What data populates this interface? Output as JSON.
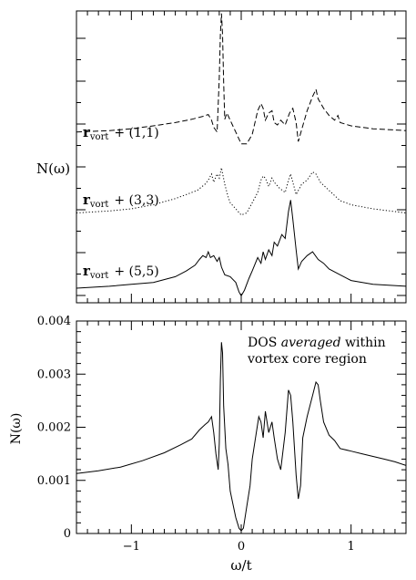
{
  "chart_data": [
    {
      "type": "line",
      "panel": "top",
      "ylabel": "N(ω)",
      "xlim": [
        -1.5,
        1.5
      ],
      "y_tick_labels": "none",
      "grid": false,
      "series": [
        {
          "name": "r_vort + (1,1)",
          "label_main": "r",
          "label_sub": "vort",
          "label_rest": "+ (1,1)",
          "style": "dashed",
          "x": [
            -1.5,
            -1.2,
            -1.0,
            -0.8,
            -0.6,
            -0.45,
            -0.35,
            -0.3,
            -0.27,
            -0.25,
            -0.22,
            -0.2,
            -0.19,
            -0.18,
            -0.17,
            -0.16,
            -0.15,
            -0.13,
            -0.1,
            -0.05,
            0.0,
            0.05,
            0.1,
            0.15,
            0.18,
            0.2,
            0.22,
            0.25,
            0.28,
            0.3,
            0.33,
            0.36,
            0.4,
            0.44,
            0.47,
            0.5,
            0.52,
            0.55,
            0.6,
            0.65,
            0.68,
            0.7,
            0.75,
            0.8,
            0.85,
            0.88,
            0.9,
            1.0,
            1.2,
            1.5
          ],
          "y": [
            0.35,
            0.38,
            0.42,
            0.48,
            0.55,
            0.62,
            0.68,
            0.72,
            0.6,
            0.45,
            0.35,
            1.5,
            2.4,
            2.85,
            2.4,
            1.4,
            0.62,
            0.75,
            0.6,
            0.35,
            0.1,
            0.1,
            0.3,
            0.8,
            0.95,
            0.85,
            0.6,
            0.75,
            0.8,
            0.55,
            0.5,
            0.6,
            0.5,
            0.75,
            0.85,
            0.55,
            0.15,
            0.4,
            0.8,
            1.1,
            1.25,
            1.05,
            0.85,
            0.7,
            0.6,
            0.7,
            0.55,
            0.48,
            0.42,
            0.38
          ]
        },
        {
          "name": "r_vort + (3,3)",
          "label_main": "r",
          "label_sub": "vort",
          "label_rest": "+ (3,3)",
          "style": "dotted",
          "x": [
            -1.5,
            -1.2,
            -1.0,
            -0.8,
            -0.6,
            -0.5,
            -0.4,
            -0.33,
            -0.3,
            -0.27,
            -0.25,
            -0.22,
            -0.2,
            -0.18,
            -0.15,
            -0.12,
            -0.1,
            -0.05,
            0.0,
            0.05,
            0.1,
            0.15,
            0.18,
            0.2,
            0.22,
            0.25,
            0.28,
            0.3,
            0.35,
            0.4,
            0.43,
            0.45,
            0.47,
            0.5,
            0.55,
            0.6,
            0.65,
            0.68,
            0.72,
            0.8,
            0.9,
            1.0,
            1.2,
            1.5
          ],
          "y": [
            0.1,
            0.15,
            0.2,
            0.3,
            0.45,
            0.55,
            0.65,
            0.8,
            0.9,
            1.05,
            0.85,
            1.05,
            0.95,
            1.2,
            0.8,
            0.5,
            0.35,
            0.2,
            0.05,
            0.1,
            0.35,
            0.6,
            0.9,
            1.0,
            0.95,
            0.75,
            0.95,
            0.85,
            0.7,
            0.6,
            0.9,
            1.05,
            0.85,
            0.55,
            0.8,
            0.9,
            1.1,
            1.05,
            0.85,
            0.65,
            0.4,
            0.3,
            0.2,
            0.1
          ]
        },
        {
          "name": "r_vort + (5,5)",
          "label_main": "r",
          "label_sub": "vort",
          "label_rest": "+ (5,5)",
          "style": "solid",
          "x": [
            -1.5,
            -1.2,
            -1.0,
            -0.8,
            -0.6,
            -0.5,
            -0.42,
            -0.38,
            -0.35,
            -0.32,
            -0.3,
            -0.28,
            -0.25,
            -0.22,
            -0.2,
            -0.18,
            -0.15,
            -0.1,
            -0.05,
            -0.02,
            0.0,
            0.03,
            0.07,
            0.1,
            0.15,
            0.18,
            0.2,
            0.22,
            0.25,
            0.28,
            0.3,
            0.33,
            0.37,
            0.4,
            0.43,
            0.45,
            0.47,
            0.5,
            0.52,
            0.55,
            0.6,
            0.65,
            0.7,
            0.75,
            0.8,
            0.9,
            1.0,
            1.2,
            1.5
          ],
          "y": [
            0.0,
            0.05,
            0.1,
            0.15,
            0.3,
            0.45,
            0.6,
            0.75,
            0.85,
            0.8,
            0.95,
            0.8,
            0.85,
            0.7,
            0.8,
            0.55,
            0.35,
            0.3,
            0.15,
            -0.1,
            -0.2,
            -0.05,
            0.25,
            0.45,
            0.8,
            0.65,
            0.95,
            0.75,
            1.0,
            0.85,
            1.2,
            1.1,
            1.4,
            1.3,
            2.0,
            2.3,
            1.8,
            1.0,
            0.5,
            0.7,
            0.85,
            0.95,
            0.75,
            0.65,
            0.5,
            0.35,
            0.2,
            0.1,
            0.05
          ]
        }
      ]
    },
    {
      "type": "line",
      "panel": "bottom",
      "xlabel": "ω/t",
      "ylabel": "N(ω)",
      "xlim": [
        -1.5,
        1.5
      ],
      "ylim": [
        0,
        0.004
      ],
      "x_ticks": [
        -1,
        0,
        1
      ],
      "x_tick_labels": [
        "−1",
        "0",
        "1"
      ],
      "y_ticks": [
        0,
        0.001,
        0.002,
        0.003,
        0.004
      ],
      "y_tick_labels": [
        "0",
        "0.001",
        "0.002",
        "0.003",
        "0.004"
      ],
      "grid": false,
      "annotation": {
        "line1_pre": "DOS ",
        "line1_italic": "averaged",
        "line1_post": " within",
        "line2": "vortex core region"
      },
      "series": [
        {
          "style": "solid",
          "x": [
            -1.5,
            -1.3,
            -1.1,
            -0.9,
            -0.7,
            -0.55,
            -0.45,
            -0.38,
            -0.33,
            -0.3,
            -0.27,
            -0.25,
            -0.23,
            -0.21,
            -0.2,
            -0.19,
            -0.18,
            -0.17,
            -0.16,
            -0.14,
            -0.12,
            -0.1,
            -0.08,
            -0.05,
            -0.02,
            0.0,
            0.02,
            0.05,
            0.08,
            0.1,
            0.13,
            0.16,
            0.18,
            0.2,
            0.22,
            0.25,
            0.28,
            0.3,
            0.33,
            0.36,
            0.4,
            0.43,
            0.45,
            0.47,
            0.5,
            0.52,
            0.54,
            0.56,
            0.6,
            0.65,
            0.68,
            0.7,
            0.72,
            0.75,
            0.8,
            0.85,
            0.9,
            1.0,
            1.1,
            1.2,
            1.3,
            1.4,
            1.5
          ],
          "y": [
            0.00113,
            0.00118,
            0.00125,
            0.00137,
            0.00152,
            0.00167,
            0.00178,
            0.00195,
            0.00205,
            0.0021,
            0.0022,
            0.0019,
            0.0015,
            0.0012,
            0.0017,
            0.0029,
            0.0036,
            0.0034,
            0.0024,
            0.0016,
            0.0013,
            0.0008,
            0.0006,
            0.0003,
            0.0001,
            5e-05,
            0.0001,
            0.0005,
            0.0009,
            0.0014,
            0.0018,
            0.0022,
            0.0021,
            0.0018,
            0.0023,
            0.0019,
            0.0021,
            0.0018,
            0.0014,
            0.0012,
            0.0019,
            0.0027,
            0.0026,
            0.0021,
            0.0011,
            0.00065,
            0.0009,
            0.0018,
            0.0022,
            0.0026,
            0.00285,
            0.0028,
            0.0025,
            0.0021,
            0.00185,
            0.00175,
            0.0016,
            0.00155,
            0.0015,
            0.00145,
            0.0014,
            0.00135,
            0.00128
          ]
        }
      ]
    }
  ]
}
